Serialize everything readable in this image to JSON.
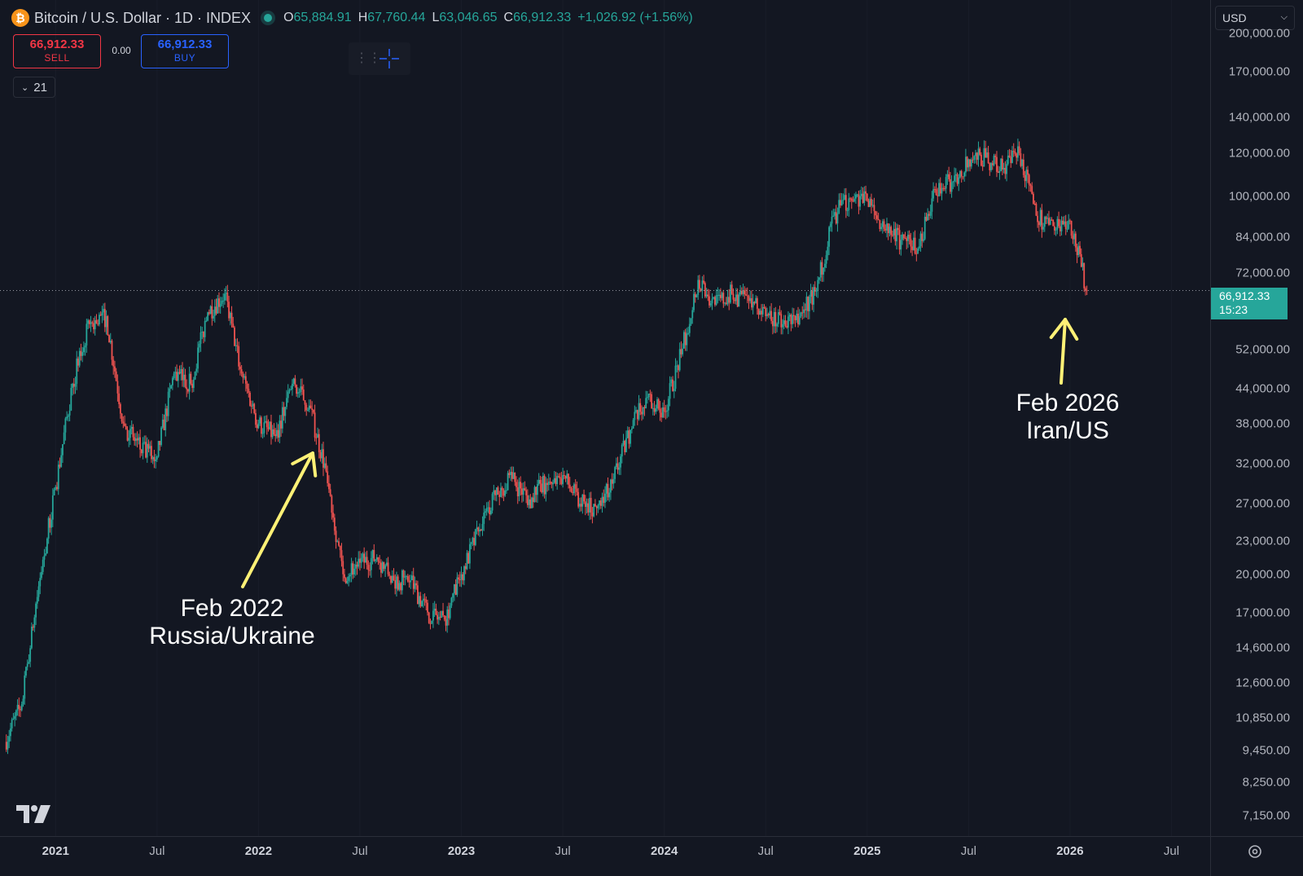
{
  "header": {
    "icon": "bitcoin-icon",
    "icon_glyph": "₿",
    "title": "Bitcoin / U.S. Dollar · 1D · INDEX",
    "open_label": "O",
    "open": "65,884.91",
    "high_label": "H",
    "high": "67,760.44",
    "low_label": "L",
    "low": "63,046.65",
    "close_label": "C",
    "close": "66,912.33",
    "change": "+1,026.92 (+1.56%)"
  },
  "trade": {
    "sell_price": "66,912.33",
    "sell_label": "SELL",
    "spread": "0.00",
    "buy_price": "66,912.33",
    "buy_label": "BUY"
  },
  "indicators_toggle": "21",
  "currency": {
    "selected": "USD"
  },
  "current_price_tag": {
    "price": "66,912.33",
    "countdown": "15:23"
  },
  "colors": {
    "up": "#26a69a",
    "down": "#ef5350",
    "annotation_arrow": "#fff176",
    "background": "#131722"
  },
  "annotations": [
    {
      "line1": "Feb 2022",
      "line2": "Russia/Ukraine",
      "date": "2022-02"
    },
    {
      "line1": "Feb 2026",
      "line2": "Iran/US",
      "date": "2026-02"
    }
  ],
  "chart_data": {
    "type": "line",
    "title": "Bitcoin / U.S. Dollar · 1D · INDEX",
    "y_scale": "log",
    "ylim": [
      6700,
      215000
    ],
    "xlim": [
      "2020-10",
      "2026-09"
    ],
    "price_ticks": [
      "200,000.00",
      "170,000.00",
      "140,000.00",
      "120,000.00",
      "100,000.00",
      "84,000.00",
      "72,000.00",
      "52,000.00",
      "44,000.00",
      "38,000.00",
      "32,000.00",
      "27,000.00",
      "23,000.00",
      "20,000.00",
      "17,000.00",
      "14,600.00",
      "12,600.00",
      "10,850.00",
      "9,450.00",
      "8,250.00",
      "7,150.00"
    ],
    "time_ticks": [
      {
        "label": "2021",
        "date": "2021-01",
        "year": true
      },
      {
        "label": "Jul",
        "date": "2021-07",
        "year": false
      },
      {
        "label": "2022",
        "date": "2022-01",
        "year": true
      },
      {
        "label": "Jul",
        "date": "2022-07",
        "year": false
      },
      {
        "label": "2023",
        "date": "2023-01",
        "year": true
      },
      {
        "label": "Jul",
        "date": "2023-07",
        "year": false
      },
      {
        "label": "2024",
        "date": "2024-01",
        "year": true
      },
      {
        "label": "Jul",
        "date": "2024-07",
        "year": false
      },
      {
        "label": "2025",
        "date": "2025-01",
        "year": true
      },
      {
        "label": "Jul",
        "date": "2025-07",
        "year": false
      },
      {
        "label": "2026",
        "date": "2026-01",
        "year": true
      },
      {
        "label": "Jul",
        "date": "2026-07",
        "year": false
      }
    ],
    "current_price": 66912.33,
    "series": [
      {
        "x": [
          "2020-10",
          "2020-11",
          "2020-12",
          "2021-01",
          "2021-02",
          "2021-03",
          "2021-04",
          "2021-05",
          "2021-06",
          "2021-07",
          "2021-08",
          "2021-09",
          "2021-10",
          "2021-11",
          "2021-12",
          "2022-01",
          "2022-02",
          "2022-03",
          "2022-04",
          "2022-05",
          "2022-06",
          "2022-07",
          "2022-08",
          "2022-09",
          "2022-10",
          "2022-11",
          "2022-12",
          "2023-01",
          "2023-02",
          "2023-03",
          "2023-04",
          "2023-05",
          "2023-06",
          "2023-07",
          "2023-08",
          "2023-09",
          "2023-10",
          "2023-11",
          "2023-12",
          "2024-01",
          "2024-02",
          "2024-03",
          "2024-04",
          "2024-05",
          "2024-06",
          "2024-07",
          "2024-08",
          "2024-09",
          "2024-10",
          "2024-11",
          "2024-12",
          "2025-01",
          "2025-02",
          "2025-03",
          "2025-04",
          "2025-05",
          "2025-06",
          "2025-07",
          "2025-08",
          "2025-09",
          "2025-10",
          "2025-11",
          "2025-12",
          "2026-01",
          "2026-02"
        ],
        "values": [
          9800,
          11500,
          19000,
          29000,
          45000,
          58000,
          60000,
          38000,
          34000,
          33000,
          47000,
          45000,
          61000,
          66000,
          47000,
          38000,
          36000,
          45000,
          41000,
          31000,
          20000,
          21000,
          21500,
          19500,
          19500,
          17000,
          16500,
          20000,
          24000,
          28000,
          30000,
          27500,
          29500,
          30500,
          27000,
          26500,
          30000,
          37000,
          42500,
          40000,
          51000,
          70000,
          63000,
          66000,
          64000,
          60000,
          58000,
          60000,
          67000,
          92000,
          99000,
          98000,
          87000,
          83000,
          80000,
          103000,
          106000,
          117000,
          118000,
          112000,
          120000,
          92000,
          88000,
          90000,
          66912
        ]
      }
    ]
  }
}
